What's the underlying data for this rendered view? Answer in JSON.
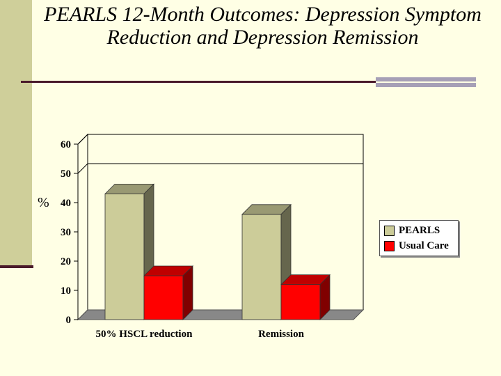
{
  "title": "PEARLS 12-Month Outcomes: Depression Symptom Reduction and Depression Remission",
  "chart_data": {
    "type": "bar",
    "categories": [
      "50% HSCL reduction",
      "Remission"
    ],
    "series": [
      {
        "name": "PEARLS",
        "values": [
          43,
          36
        ],
        "color": "#cccc99"
      },
      {
        "name": "Usual Care",
        "values": [
          15,
          12
        ],
        "color": "#ff0000"
      }
    ],
    "ylabel": "%",
    "ylim": [
      0,
      60
    ],
    "yticks": [
      0,
      10,
      20,
      30,
      40,
      50,
      60
    ],
    "ytick_labels": [
      "0",
      "10",
      "20",
      "30",
      "40",
      "50",
      "60"
    ],
    "gridlines": [
      50,
      60
    ],
    "legend_position": "right",
    "style": "3d"
  }
}
